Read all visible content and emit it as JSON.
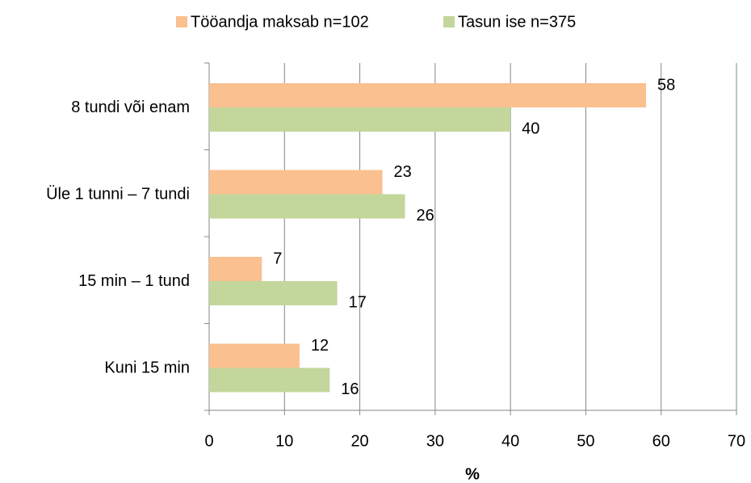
{
  "chart_data": {
    "type": "bar",
    "orientation": "horizontal",
    "categories": [
      "8 tundi või enam",
      "Üle 1 tunni – 7 tundi",
      "15 min – 1 tund",
      "Kuni 15 min"
    ],
    "series": [
      {
        "name": "Tööandja maksab n=102",
        "color": "#fac090",
        "values": [
          58,
          23,
          7,
          12
        ]
      },
      {
        "name": "Tasun ise n=375",
        "color": "#c3d69b",
        "values": [
          40,
          26,
          17,
          16
        ]
      }
    ],
    "xlabel": "%",
    "xlim": [
      0,
      70
    ],
    "xticks": [
      0,
      10,
      20,
      30,
      40,
      50,
      60,
      70
    ],
    "grid": true,
    "legend": "top"
  }
}
